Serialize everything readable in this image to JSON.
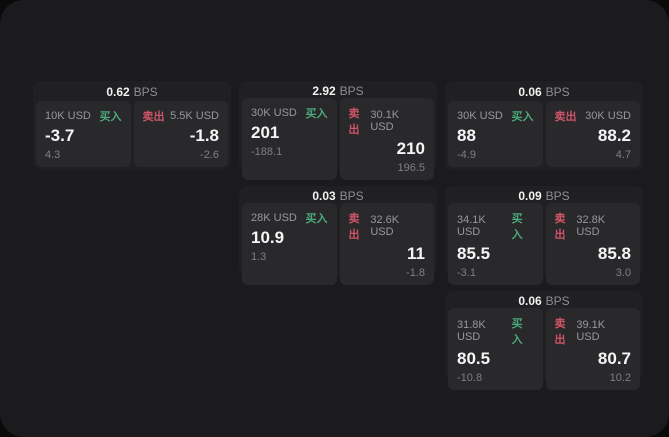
{
  "colors": {
    "outer_bg": "#0a0a0b",
    "panel_bg": "#1b1b1d",
    "card_bg": "#202022",
    "tile_bg": "#29292b",
    "buy_accent": "#4ba97a",
    "sell_accent": "#cf5468",
    "text_primary": "#f5f5f6",
    "text_muted": "#8e8e93"
  },
  "labels": {
    "bps": "BPS",
    "buy": "买入",
    "sell": "卖出"
  },
  "cards": [
    {
      "bps": "0.62",
      "buy": {
        "size": "10K USD",
        "price": "-3.7",
        "delta": "4.3"
      },
      "sell": {
        "size": "5.5K USD",
        "price": "-1.8",
        "delta": "-2.6"
      }
    },
    {
      "bps": "2.92",
      "buy": {
        "size": "30K USD",
        "price": "201",
        "delta": "-188.1"
      },
      "sell": {
        "size": "30.1K USD",
        "price": "210",
        "delta": "196.5"
      }
    },
    {
      "bps": "0.06",
      "buy": {
        "size": "30K USD",
        "price": "88",
        "delta": "-4.9"
      },
      "sell": {
        "size": "30K USD",
        "price": "88.2",
        "delta": "4.7"
      }
    },
    {
      "bps": "0.03",
      "buy": {
        "size": "28K USD",
        "price": "10.9",
        "delta": "1.3"
      },
      "sell": {
        "size": "32.6K USD",
        "price": "11",
        "delta": "-1.8"
      }
    },
    {
      "bps": "0.09",
      "buy": {
        "size": "34.1K USD",
        "price": "85.5",
        "delta": "-3.1"
      },
      "sell": {
        "size": "32.8K USD",
        "price": "85.8",
        "delta": "3.0"
      }
    },
    {
      "bps": "0.06",
      "buy": {
        "size": "31.8K USD",
        "price": "80.5",
        "delta": "-10.8"
      },
      "sell": {
        "size": "39.1K USD",
        "price": "80.7",
        "delta": "10.2"
      }
    }
  ]
}
